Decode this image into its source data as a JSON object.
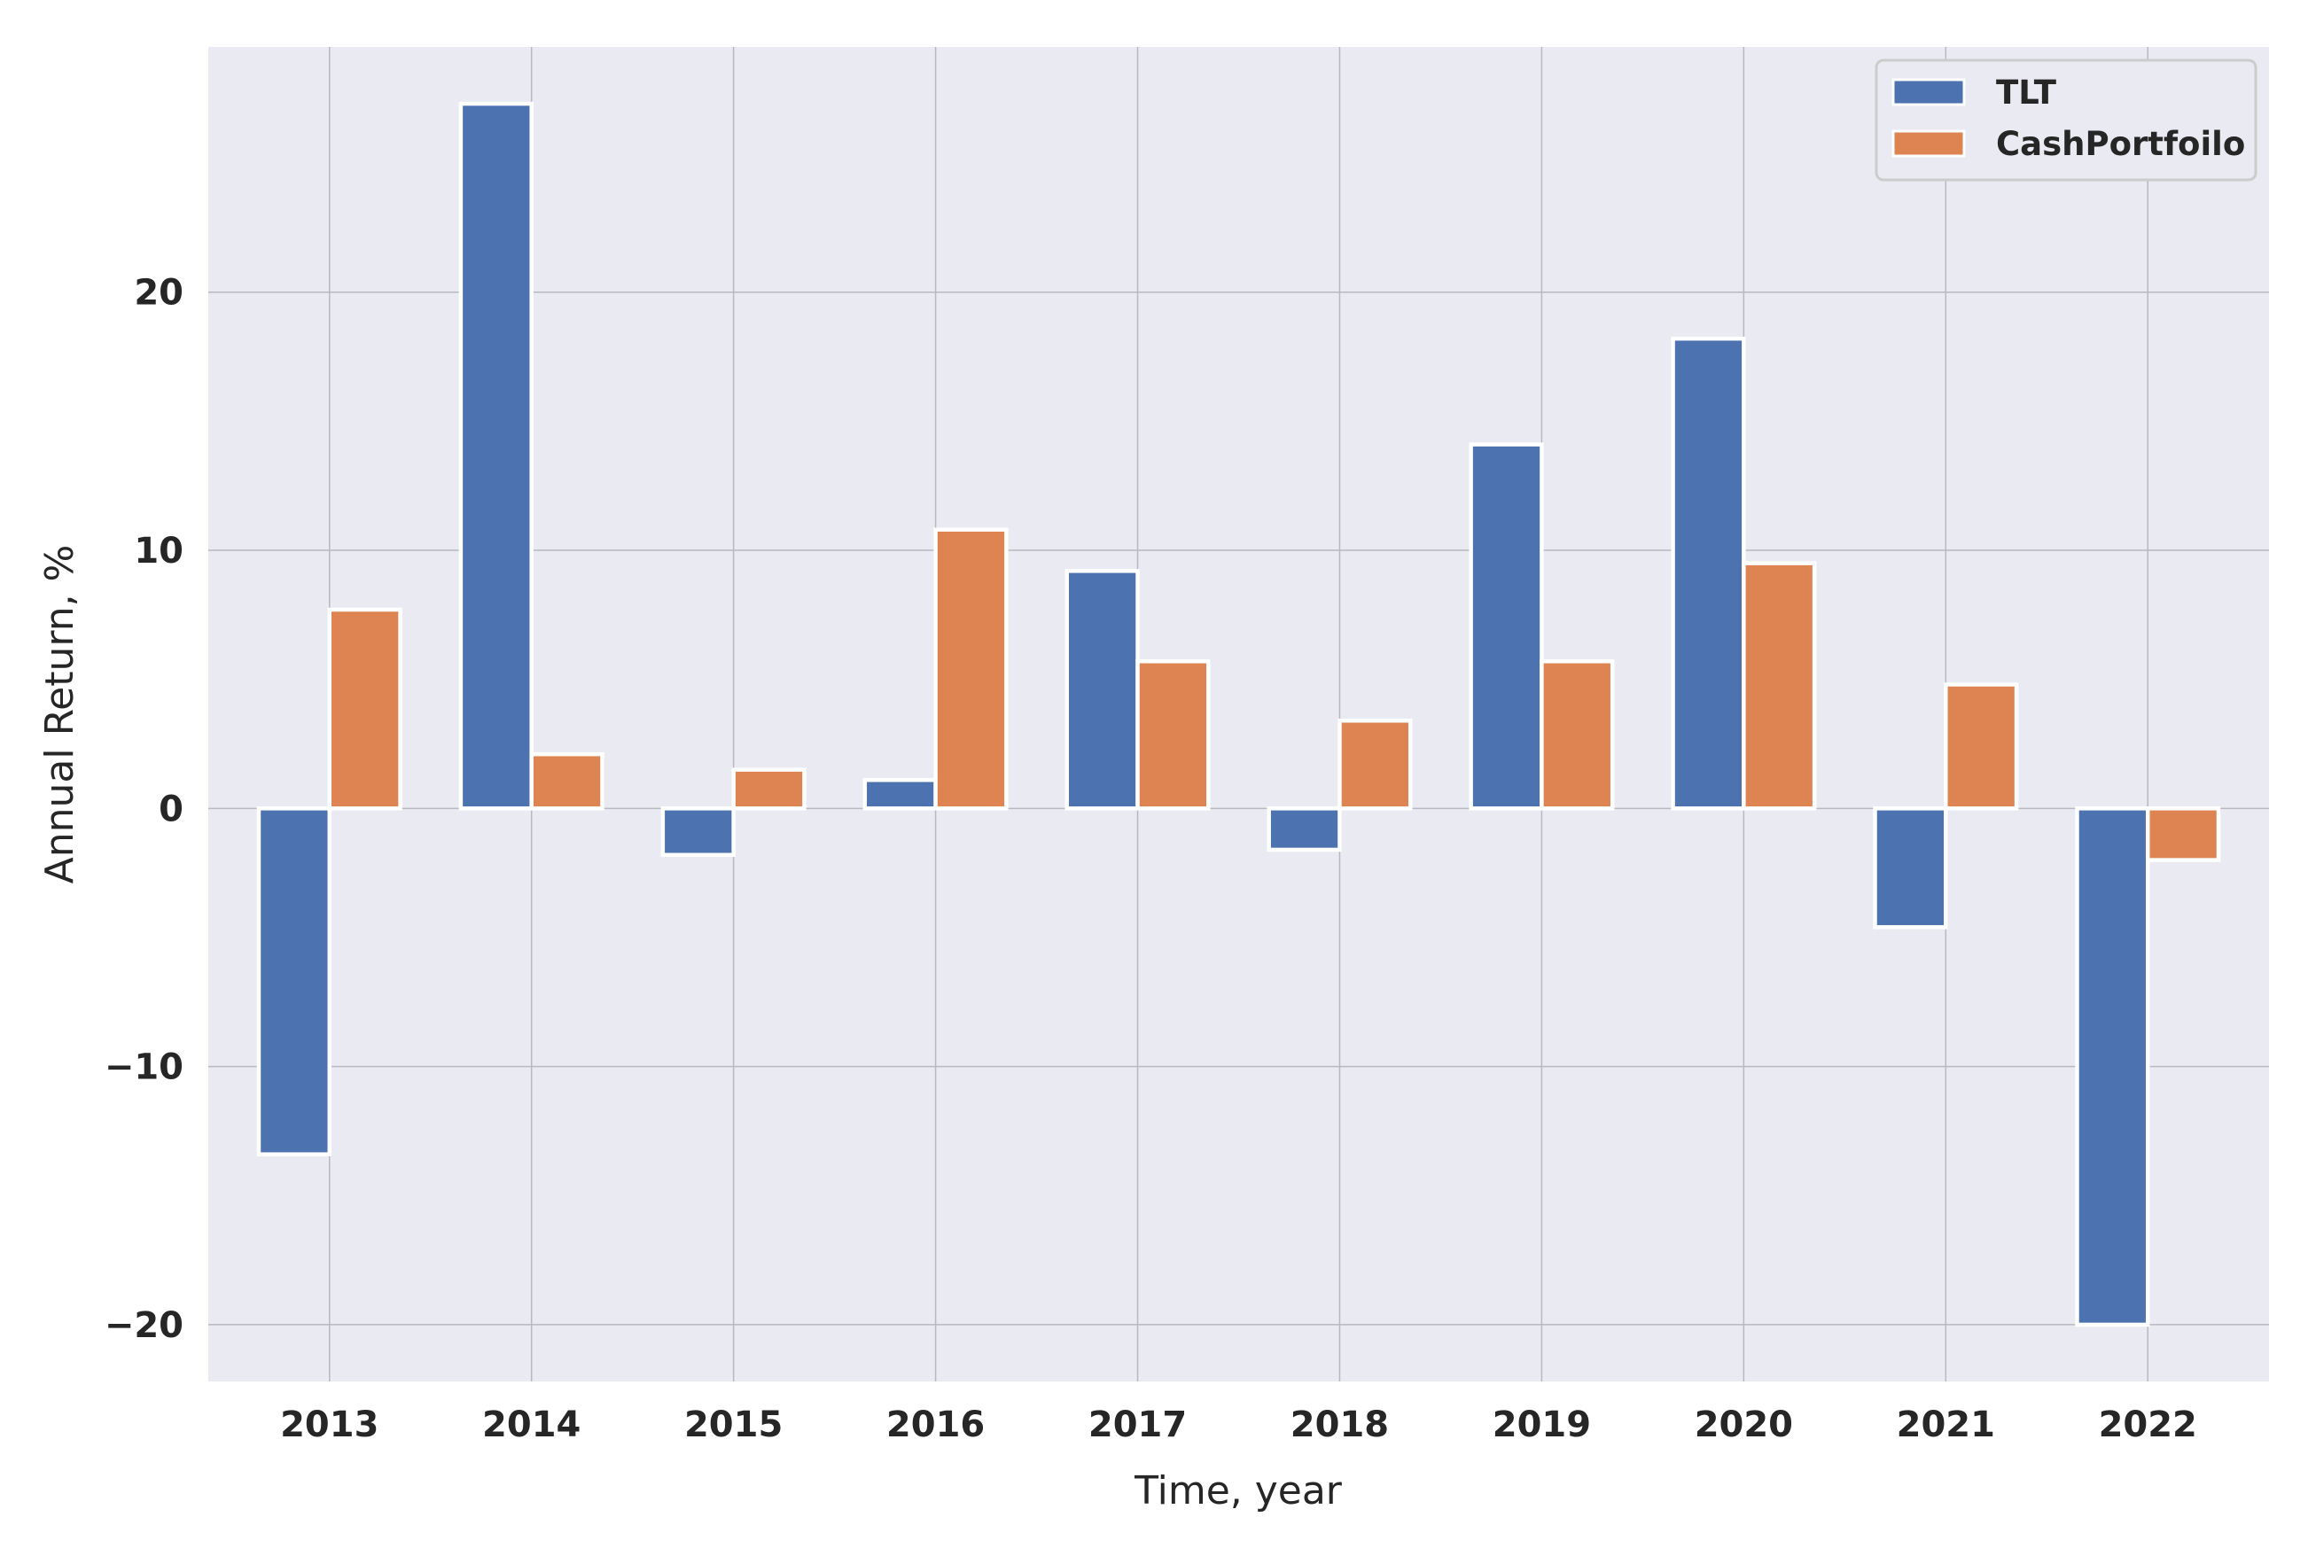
{
  "chart_data": {
    "type": "bar",
    "categories": [
      "2013",
      "2014",
      "2015",
      "2016",
      "2017",
      "2018",
      "2019",
      "2020",
      "2021",
      "2022"
    ],
    "series": [
      {
        "name": "TLT",
        "color": "#4c72b0",
        "values": [
          -13.4,
          27.3,
          -1.8,
          1.1,
          9.2,
          -1.6,
          14.1,
          18.2,
          -4.6,
          -20.0
        ]
      },
      {
        "name": "CashPortfoilo",
        "color": "#dd8452",
        "values": [
          7.7,
          2.1,
          1.5,
          10.8,
          5.7,
          3.4,
          5.7,
          9.5,
          4.8,
          -2.0
        ]
      }
    ],
    "xlabel": "Time, year",
    "ylabel": "Annual Return, %",
    "ylim": [
      -22.2,
      29.5
    ],
    "yticks": [
      -20,
      -10,
      0,
      10,
      20
    ],
    "ytick_labels": [
      "−20",
      "−10",
      "0",
      "10",
      "20"
    ],
    "grid": true,
    "legend_position": "top-right",
    "background_color": "#eaeaf2",
    "grid_color": "#b8b8c0"
  }
}
